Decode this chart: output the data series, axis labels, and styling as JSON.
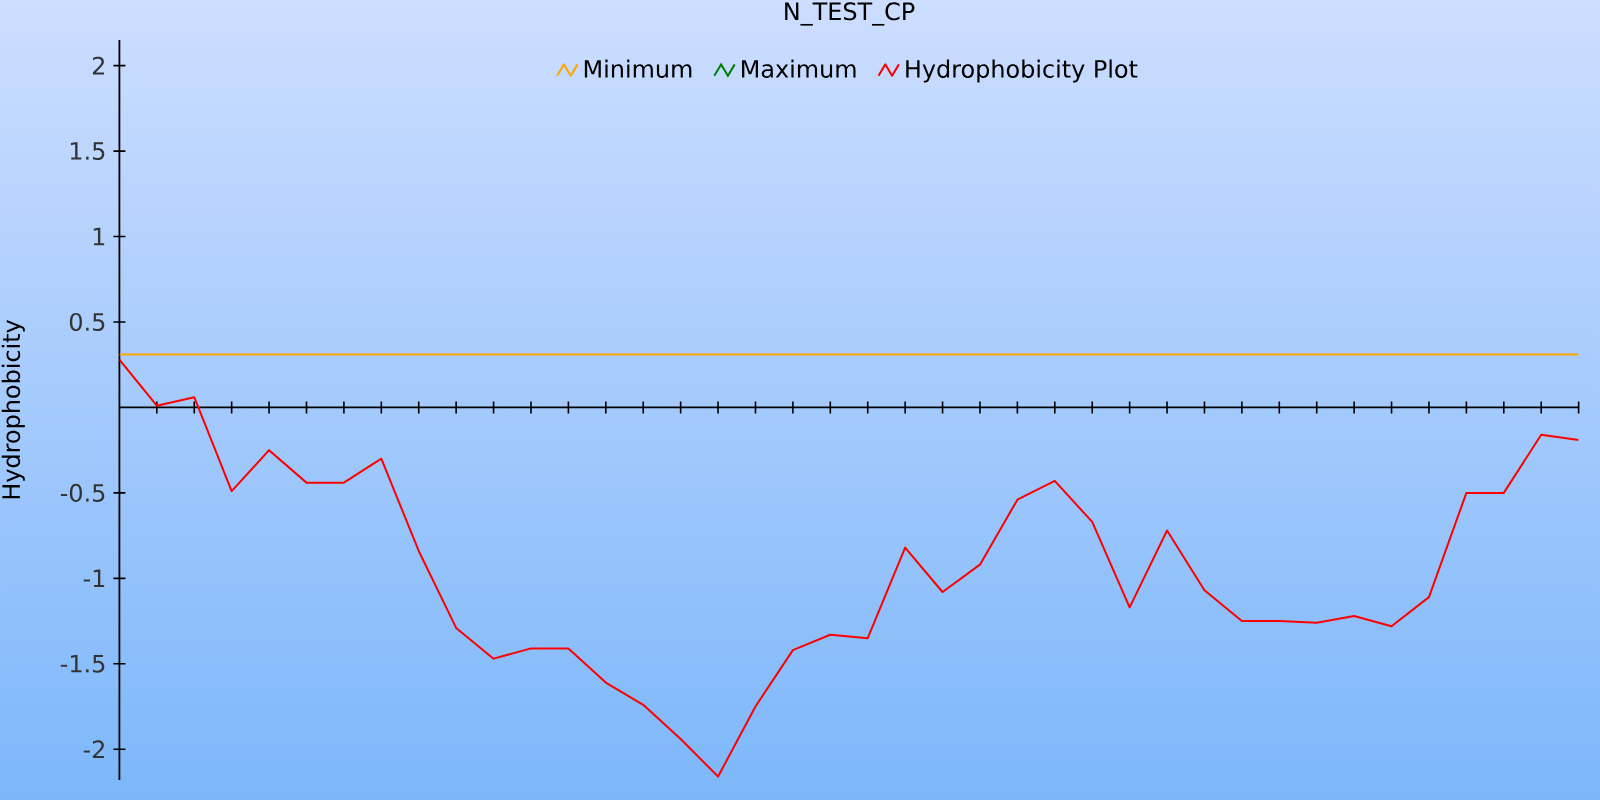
{
  "chart_data": {
    "type": "line",
    "title": "N_TEST_CP",
    "ylabel": "Hydrophobicity",
    "categories": [
      null,
      null,
      null,
      null,
      null,
      null,
      null,
      null,
      null,
      null,
      null,
      null,
      null,
      null,
      null,
      null,
      null,
      null,
      null,
      null,
      null,
      null,
      null,
      null,
      null,
      null,
      null,
      null,
      null,
      null,
      null,
      null,
      null,
      null,
      null,
      null,
      null,
      null,
      null,
      null
    ],
    "series": [
      {
        "name": "Minimum",
        "color": "#ffa500",
        "values": [
          0.31,
          0.31,
          0.31,
          0.31,
          0.31,
          0.31,
          0.31,
          0.31,
          0.31,
          0.31,
          0.31,
          0.31,
          0.31,
          0.31,
          0.31,
          0.31,
          0.31,
          0.31,
          0.31,
          0.31,
          0.31,
          0.31,
          0.31,
          0.31,
          0.31,
          0.31,
          0.31,
          0.31,
          0.31,
          0.31,
          0.31,
          0.31,
          0.31,
          0.31,
          0.31,
          0.31,
          0.31,
          0.31,
          0.31,
          0.31
        ]
      },
      {
        "name": "Maximum",
        "color": "#008000",
        "values": [
          null,
          null,
          null,
          null,
          null,
          null,
          null,
          null,
          null,
          null,
          null,
          null,
          null,
          null,
          null,
          null,
          null,
          null,
          null,
          null,
          null,
          null,
          null,
          null,
          null,
          null,
          null,
          null,
          null,
          null,
          null,
          null,
          null,
          null,
          null,
          null,
          null,
          null,
          null,
          null
        ]
      },
      {
        "name": "Hydrophobicity Plot",
        "color": "#ff0000",
        "values": [
          0.28,
          0.01,
          0.06,
          -0.49,
          -0.25,
          -0.44,
          -0.44,
          -0.3,
          -0.84,
          -1.29,
          -1.47,
          -1.41,
          -1.41,
          -1.61,
          -1.74,
          -1.94,
          -2.16,
          -1.75,
          -1.42,
          -1.33,
          -1.35,
          -0.82,
          -1.08,
          -0.92,
          -0.54,
          -0.43,
          -0.67,
          -1.17,
          -0.72,
          -1.07,
          -1.25,
          -1.25,
          -1.26,
          -1.22,
          -1.28,
          -1.11,
          -0.5,
          -0.5,
          -0.16,
          -0.19
        ]
      }
    ],
    "ylim": [
      -2.18,
      2.15
    ],
    "yticks": [
      -2,
      -1.5,
      -1,
      -0.5,
      0.5,
      1,
      1.5,
      2
    ],
    "tick_labels": "y",
    "grid": false,
    "legend": "top"
  }
}
